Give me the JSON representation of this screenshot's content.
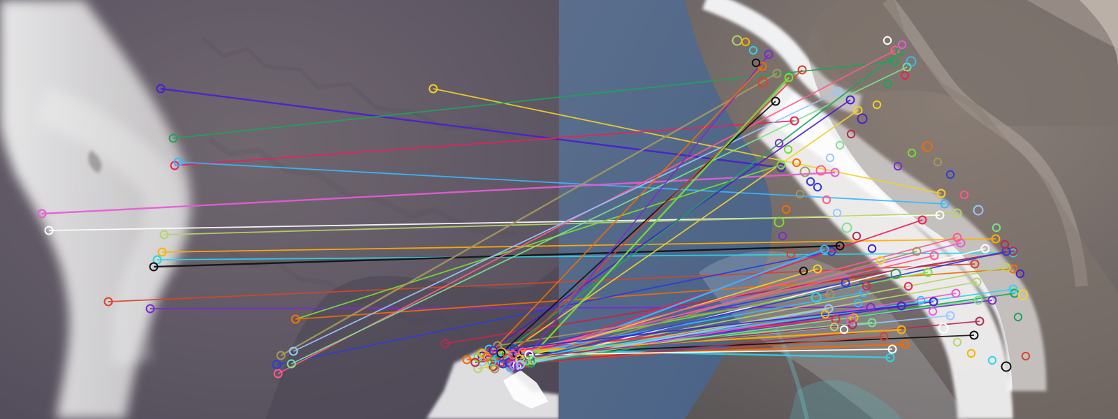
{
  "image": {
    "kind": "feature-matching visualization",
    "panels": [
      {
        "name": "left-aerial-view",
        "description_colors": {
          "base": "#6f6672",
          "cloud": "#d9d8d8"
        }
      },
      {
        "name": "right-aerial-view",
        "description_colors": {
          "sea": "#5e7895",
          "snow": "#f3f5f8",
          "mountain": "#7b7169"
        }
      }
    ],
    "keypoint_marker": "ring",
    "match_line_palette": [
      "#4b1fd0",
      "#f2d12b",
      "#1ea35a",
      "#ec1f5c",
      "#39b8ff",
      "#e85bd6",
      "#ffffff",
      "#b6d56b",
      "#ffb000",
      "#2ad5ea",
      "#111111",
      "#d6452a",
      "#7b2ccf",
      "#77df35",
      "#f46c00",
      "#a4985d",
      "#2e3bd9",
      "#ff5a8b",
      "#99c7ff",
      "#7ce28b",
      "#b32d50"
    ],
    "match_count_drawn": 64
  }
}
